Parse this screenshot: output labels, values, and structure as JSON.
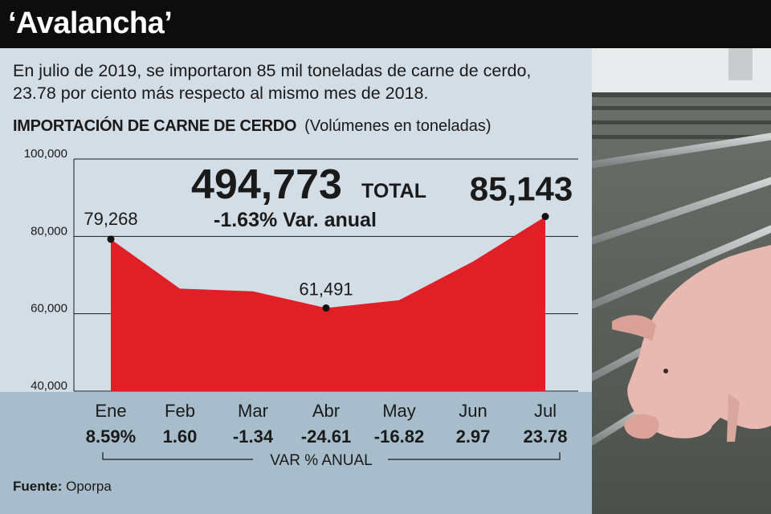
{
  "header": {
    "title": "‘Avalancha’"
  },
  "intro_text": "En julio de 2019, se importaron 85 mil toneladas de carne de cerdo, 23.78 por ciento más respecto al mismo mes de 2018.",
  "chart_title": {
    "main": "IMPORTACIÓN DE CARNE DE CERDO",
    "sub": "(Volúmenes en toneladas)"
  },
  "total": {
    "value": "494,773",
    "label": "TOTAL",
    "variation": "-1.63% Var. anual"
  },
  "var_axis_label": "VAR % ANUAL",
  "source": {
    "label": "Fuente:",
    "value": "Oporpa"
  },
  "colors": {
    "area": "#e11f26",
    "header_bg": "#0d0d0d",
    "panel_bg": "#d2dde6",
    "band_bg": "#a7bdcc"
  },
  "chart_data": {
    "type": "area",
    "categories": [
      "Ene",
      "Feb",
      "Mar",
      "Abr",
      "May",
      "Jun",
      "Jul"
    ],
    "values": [
      79268,
      66500,
      65800,
      61491,
      63500,
      73500,
      85143
    ],
    "point_labels": [
      {
        "index": 0,
        "text": "79,268"
      },
      {
        "index": 3,
        "text": "61,491"
      },
      {
        "index": 6,
        "text": "85,143"
      }
    ],
    "var_pct_labels": [
      "8.59%",
      "1.60",
      "-1.34",
      "-24.61",
      "-16.82",
      "2.97",
      "23.78"
    ],
    "yticks": [
      40000,
      60000,
      80000,
      100000
    ],
    "ytick_labels": [
      "40,000",
      "60,000",
      "80,000",
      "100,000"
    ],
    "ylim": [
      40000,
      100000
    ],
    "grid": true
  }
}
